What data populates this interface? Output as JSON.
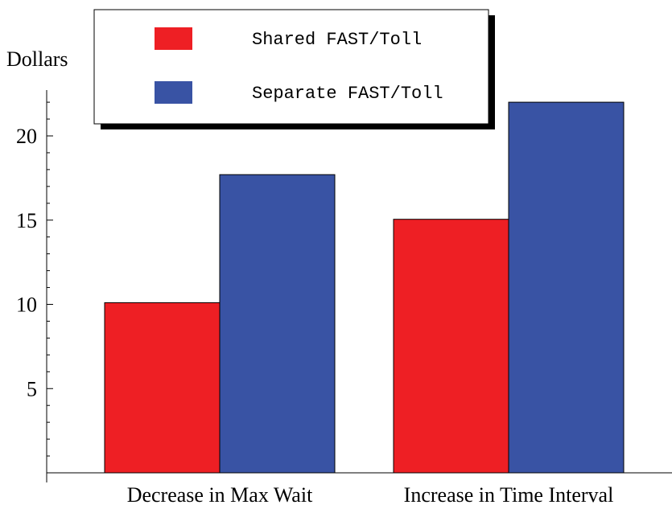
{
  "chart_data": {
    "type": "bar",
    "ylabel": "Dollars",
    "categories": [
      "Decrease in Max Wait",
      "Increase in Time Interval"
    ],
    "series": [
      {
        "name": "Shared FAST/Toll",
        "values": [
          10.1,
          15.05
        ],
        "color": "#ee1f24"
      },
      {
        "name": "Separate FAST/Toll",
        "values": [
          17.7,
          22.0
        ],
        "color": "#3953a4"
      }
    ],
    "yticks": [
      5,
      10,
      15,
      20
    ],
    "ylim": [
      0,
      22.5
    ],
    "grid": false,
    "legend_position": "top-left"
  }
}
